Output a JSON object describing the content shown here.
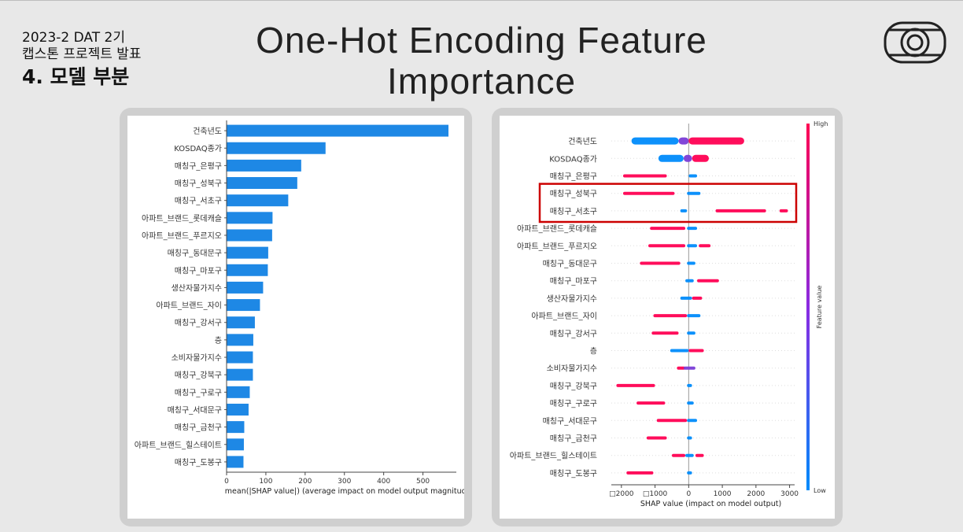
{
  "header": {
    "line1": "2023-2 DAT 2기",
    "line2": "캡스톤 프로젝트 발표",
    "section": "4. 모델 부분"
  },
  "title": {
    "line1": "One-Hot Encoding Feature",
    "line2": "Importance"
  },
  "logo_icon": "camera-lens-logo-icon",
  "colors": {
    "bar": "#1e88e5",
    "high": "#ff0052",
    "low": "#008bfb",
    "highlight_box": "#cc0000",
    "panel": "#cfcfcf"
  },
  "chart_data": [
    {
      "type": "bar",
      "categories": [
        "건축년도",
        "KOSDAQ종가",
        "매칭구_은평구",
        "매칭구_성북구",
        "매칭구_서초구",
        "아파트_브랜드_롯데캐슬",
        "아파트_브랜드_푸르지오",
        "매칭구_동대문구",
        "매칭구_마포구",
        "생산자물가지수",
        "아파트_브랜드_자이",
        "매칭구_강서구",
        "층",
        "소비자물가지수",
        "매칭구_강북구",
        "매칭구_구로구",
        "매칭구_서대문구",
        "매칭구_금천구",
        "아파트_브랜드_힐스테이트",
        "매칭구_도봉구"
      ],
      "values": [
        565,
        252,
        190,
        180,
        157,
        117,
        116,
        106,
        105,
        93,
        85,
        72,
        68,
        67,
        67,
        59,
        56,
        45,
        44,
        43
      ],
      "xlabel": "mean(|SHAP value|) (average impact on model output magnitude)",
      "xticks": [
        "0",
        "100",
        "200",
        "300",
        "400",
        "500"
      ],
      "xlim": [
        0,
        585
      ]
    },
    {
      "type": "scatter",
      "categories": [
        "건축년도",
        "KOSDAQ종가",
        "매칭구_은평구",
        "매칭구_성북구",
        "매칭구_서초구",
        "아파트_브랜드_롯데캐슬",
        "아파트_브랜드_푸르지오",
        "매칭구_동대문구",
        "매칭구_마포구",
        "생산자물가지수",
        "아파트_브랜드_자이",
        "매칭구_강서구",
        "층",
        "소비자물가지수",
        "매칭구_강북구",
        "매칭구_구로구",
        "매칭구_서대문구",
        "매칭구_금천구",
        "아파트_브랜드_힐스테이트",
        "매칭구_도봉구"
      ],
      "xlabel": "SHAP value (impact on model output)",
      "xticks": [
        "□2000",
        "□1000",
        "0",
        "1000",
        "2000",
        "3000"
      ],
      "xlim": [
        -2300,
        3150
      ],
      "colorbar": {
        "label": "Feature value",
        "high": "High",
        "low": "Low"
      },
      "highlighted": [
        "매칭구_성북구",
        "매칭구_서초구"
      ],
      "rows": [
        {
          "segs": [
            [
              -1700,
              -300,
              "low"
            ],
            [
              -300,
              0,
              "mid"
            ],
            [
              0,
              1650,
              "high"
            ]
          ]
        },
        {
          "segs": [
            [
              -900,
              -150,
              "low"
            ],
            [
              -150,
              100,
              "mid"
            ],
            [
              100,
              600,
              "high"
            ]
          ]
        },
        {
          "segs": [
            [
              -1950,
              -650,
              "high"
            ],
            [
              0,
              250,
              "low"
            ]
          ]
        },
        {
          "segs": [
            [
              -1950,
              -420,
              "high"
            ],
            [
              -50,
              350,
              "low"
            ]
          ]
        },
        {
          "segs": [
            [
              -250,
              -50,
              "low"
            ],
            [
              800,
              2300,
              "high"
            ],
            [
              2700,
              2950,
              "high"
            ]
          ]
        },
        {
          "segs": [
            [
              -1150,
              -100,
              "high"
            ],
            [
              -50,
              250,
              "low"
            ]
          ]
        },
        {
          "segs": [
            [
              -1200,
              -100,
              "high"
            ],
            [
              -50,
              250,
              "low"
            ],
            [
              300,
              650,
              "high"
            ]
          ]
        },
        {
          "segs": [
            [
              -1450,
              -250,
              "high"
            ],
            [
              -50,
              200,
              "low"
            ]
          ]
        },
        {
          "segs": [
            [
              -100,
              150,
              "low"
            ],
            [
              250,
              900,
              "high"
            ]
          ]
        },
        {
          "segs": [
            [
              -250,
              100,
              "low"
            ],
            [
              100,
              400,
              "high"
            ]
          ]
        },
        {
          "segs": [
            [
              -1050,
              -50,
              "high"
            ],
            [
              -50,
              350,
              "low"
            ]
          ]
        },
        {
          "segs": [
            [
              -1100,
              -300,
              "high"
            ],
            [
              -50,
              200,
              "low"
            ]
          ]
        },
        {
          "segs": [
            [
              -550,
              0,
              "low"
            ],
            [
              0,
              450,
              "high"
            ]
          ]
        },
        {
          "segs": [
            [
              -350,
              -100,
              "high"
            ],
            [
              -150,
              200,
              "mid"
            ]
          ]
        },
        {
          "segs": [
            [
              -2150,
              -1000,
              "high"
            ],
            [
              -50,
              100,
              "low"
            ]
          ]
        },
        {
          "segs": [
            [
              -1550,
              -700,
              "high"
            ],
            [
              -50,
              150,
              "low"
            ]
          ]
        },
        {
          "segs": [
            [
              -950,
              -50,
              "high"
            ],
            [
              -50,
              250,
              "low"
            ]
          ]
        },
        {
          "segs": [
            [
              -1250,
              -650,
              "high"
            ],
            [
              -50,
              100,
              "low"
            ]
          ]
        },
        {
          "segs": [
            [
              -500,
              -100,
              "high"
            ],
            [
              -100,
              150,
              "low"
            ],
            [
              200,
              450,
              "high"
            ]
          ]
        },
        {
          "segs": [
            [
              -1850,
              -1050,
              "high"
            ],
            [
              -50,
              100,
              "low"
            ]
          ]
        }
      ]
    }
  ]
}
